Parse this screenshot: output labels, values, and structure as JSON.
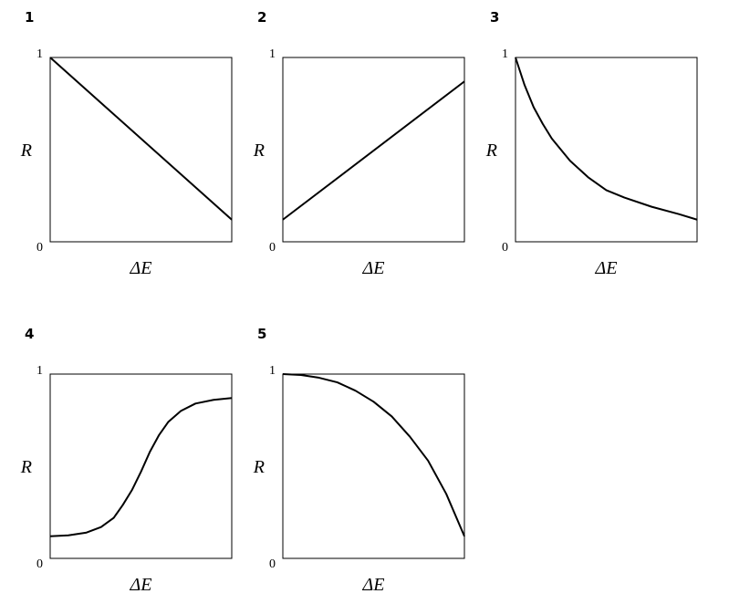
{
  "chart_data": [
    {
      "type": "line",
      "title": "1",
      "xlabel": "ΔE",
      "ylabel": "R",
      "xlim": [
        0,
        1
      ],
      "ylim": [
        0,
        1
      ],
      "yticks": [
        0,
        1
      ],
      "color": "#000000",
      "x": [
        0,
        1
      ],
      "values": [
        1,
        0.12
      ]
    },
    {
      "type": "line",
      "title": "2",
      "xlabel": "ΔE",
      "ylabel": "R",
      "xlim": [
        0,
        1
      ],
      "ylim": [
        0,
        1
      ],
      "yticks": [
        0,
        1
      ],
      "color": "#000000",
      "x": [
        0,
        1
      ],
      "values": [
        0.12,
        0.87
      ]
    },
    {
      "type": "line",
      "title": "3",
      "xlabel": "ΔE",
      "ylabel": "R",
      "xlim": [
        0,
        1
      ],
      "ylim": [
        0,
        1
      ],
      "yticks": [
        0,
        1
      ],
      "color": "#000000",
      "x": [
        0,
        0.05,
        0.1,
        0.15,
        0.2,
        0.25,
        0.3,
        0.4,
        0.5,
        0.6,
        0.75,
        0.9,
        1
      ],
      "values": [
        1,
        0.85,
        0.73,
        0.64,
        0.56,
        0.5,
        0.44,
        0.35,
        0.28,
        0.24,
        0.19,
        0.15,
        0.12
      ]
    },
    {
      "type": "line",
      "title": "4",
      "xlabel": "ΔE",
      "ylabel": "R",
      "xlim": [
        0,
        1
      ],
      "ylim": [
        0,
        1
      ],
      "yticks": [
        0,
        1
      ],
      "color": "#000000",
      "x": [
        0,
        0.1,
        0.2,
        0.28,
        0.35,
        0.4,
        0.45,
        0.5,
        0.55,
        0.6,
        0.65,
        0.72,
        0.8,
        0.9,
        1
      ],
      "values": [
        0.12,
        0.125,
        0.14,
        0.17,
        0.22,
        0.29,
        0.37,
        0.47,
        0.58,
        0.67,
        0.74,
        0.8,
        0.84,
        0.86,
        0.87
      ]
    },
    {
      "type": "line",
      "title": "5",
      "xlabel": "ΔE",
      "ylabel": "R",
      "xlim": [
        0,
        1
      ],
      "ylim": [
        0,
        1
      ],
      "yticks": [
        0,
        1
      ],
      "color": "#000000",
      "x": [
        0,
        0.1,
        0.2,
        0.3,
        0.4,
        0.5,
        0.6,
        0.7,
        0.8,
        0.9,
        1
      ],
      "values": [
        1,
        0.995,
        0.98,
        0.955,
        0.91,
        0.85,
        0.77,
        0.66,
        0.53,
        0.35,
        0.12
      ]
    }
  ]
}
